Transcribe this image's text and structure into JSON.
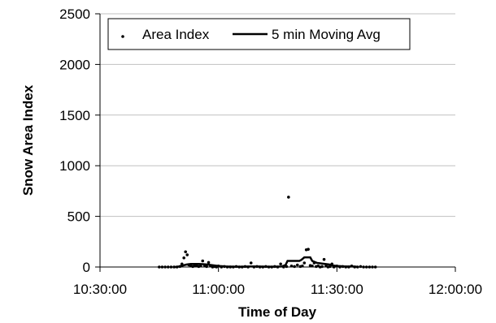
{
  "chart_data": {
    "type": "scatter",
    "xlabel": "Time of Day",
    "ylabel": "Snow Area Index",
    "x_ticks": [
      "10:30:00",
      "11:00:00",
      "11:30:00",
      "12:00:00"
    ],
    "y_ticks": [
      "0",
      "500",
      "1000",
      "1500",
      "2000",
      "2500"
    ],
    "xlim": [
      "10:30:00",
      "12:00:00"
    ],
    "ylim": [
      0,
      2500
    ],
    "grid": "horizontal",
    "legend": {
      "placement": "top-left",
      "entries": [
        "Area Index",
        "5 min Moving Avg"
      ]
    },
    "series": [
      {
        "name": "Area Index",
        "style": "points",
        "color": "#000000",
        "points": [
          [
            "10:45:00",
            0
          ],
          [
            "10:45:45",
            0
          ],
          [
            "10:46:30",
            0
          ],
          [
            "10:47:15",
            0
          ],
          [
            "10:48:00",
            0
          ],
          [
            "10:48:45",
            0
          ],
          [
            "10:49:30",
            0
          ],
          [
            "10:50:15",
            5
          ],
          [
            "10:50:45",
            30
          ],
          [
            "10:51:15",
            90
          ],
          [
            "10:51:40",
            150
          ],
          [
            "10:52:05",
            120
          ],
          [
            "10:52:30",
            20
          ],
          [
            "10:53:00",
            10
          ],
          [
            "10:53:30",
            5
          ],
          [
            "10:54:00",
            15
          ],
          [
            "10:54:30",
            10
          ],
          [
            "10:55:00",
            5
          ],
          [
            "10:55:30",
            10
          ],
          [
            "10:56:00",
            60
          ],
          [
            "10:56:30",
            15
          ],
          [
            "10:57:00",
            5
          ],
          [
            "10:57:30",
            45
          ],
          [
            "10:58:00",
            10
          ],
          [
            "10:58:30",
            0
          ],
          [
            "10:59:00",
            5
          ],
          [
            "10:59:30",
            0
          ],
          [
            "11:00:00",
            10
          ],
          [
            "11:00:45",
            0
          ],
          [
            "11:01:30",
            5
          ],
          [
            "11:02:15",
            0
          ],
          [
            "11:03:00",
            0
          ],
          [
            "11:03:45",
            0
          ],
          [
            "11:04:30",
            5
          ],
          [
            "11:05:15",
            0
          ],
          [
            "11:06:00",
            0
          ],
          [
            "11:06:45",
            5
          ],
          [
            "11:07:30",
            0
          ],
          [
            "11:08:15",
            40
          ],
          [
            "11:09:00",
            0
          ],
          [
            "11:09:45",
            5
          ],
          [
            "11:10:30",
            0
          ],
          [
            "11:11:15",
            0
          ],
          [
            "11:12:00",
            5
          ],
          [
            "11:12:45",
            0
          ],
          [
            "11:13:30",
            0
          ],
          [
            "11:14:15",
            5
          ],
          [
            "11:15:00",
            0
          ],
          [
            "11:15:45",
            30
          ],
          [
            "11:16:30",
            0
          ],
          [
            "11:17:15",
            5
          ],
          [
            "11:17:45",
            690
          ],
          [
            "11:18:30",
            10
          ],
          [
            "11:19:15",
            5
          ],
          [
            "11:20:00",
            20
          ],
          [
            "11:20:45",
            5
          ],
          [
            "11:21:15",
            10
          ],
          [
            "11:21:45",
            40
          ],
          [
            "11:22:15",
            170
          ],
          [
            "11:22:45",
            175
          ],
          [
            "11:23:15",
            15
          ],
          [
            "11:23:45",
            10
          ],
          [
            "11:24:15",
            40
          ],
          [
            "11:24:45",
            5
          ],
          [
            "11:25:15",
            10
          ],
          [
            "11:25:45",
            0
          ],
          [
            "11:26:15",
            5
          ],
          [
            "11:26:45",
            75
          ],
          [
            "11:27:15",
            10
          ],
          [
            "11:27:45",
            0
          ],
          [
            "11:28:15",
            5
          ],
          [
            "11:28:45",
            30
          ],
          [
            "11:29:15",
            0
          ],
          [
            "11:30:00",
            10
          ],
          [
            "11:30:45",
            0
          ],
          [
            "11:31:30",
            5
          ],
          [
            "11:32:15",
            0
          ],
          [
            "11:33:00",
            0
          ],
          [
            "11:33:45",
            10
          ],
          [
            "11:34:30",
            0
          ],
          [
            "11:35:15",
            0
          ],
          [
            "11:36:00",
            5
          ],
          [
            "11:36:45",
            0
          ],
          [
            "11:37:30",
            0
          ],
          [
            "11:38:15",
            0
          ],
          [
            "11:39:00",
            0
          ],
          [
            "11:39:45",
            0
          ]
        ]
      },
      {
        "name": "5 min Moving Avg",
        "style": "line",
        "color": "#000000",
        "points": [
          [
            "10:49:00",
            0
          ],
          [
            "10:50:00",
            5
          ],
          [
            "10:51:00",
            15
          ],
          [
            "10:52:00",
            25
          ],
          [
            "10:53:00",
            30
          ],
          [
            "10:54:00",
            30
          ],
          [
            "10:55:00",
            30
          ],
          [
            "10:56:00",
            28
          ],
          [
            "10:57:00",
            25
          ],
          [
            "10:58:00",
            20
          ],
          [
            "10:59:00",
            15
          ],
          [
            "11:00:00",
            10
          ],
          [
            "11:02:00",
            5
          ],
          [
            "11:04:00",
            3
          ],
          [
            "11:06:00",
            3
          ],
          [
            "11:08:00",
            5
          ],
          [
            "11:10:00",
            5
          ],
          [
            "11:12:00",
            3
          ],
          [
            "11:14:00",
            3
          ],
          [
            "11:16:00",
            5
          ],
          [
            "11:17:00",
            20
          ],
          [
            "11:17:30",
            60
          ],
          [
            "11:20:30",
            60
          ],
          [
            "11:21:00",
            70
          ],
          [
            "11:21:45",
            95
          ],
          [
            "11:23:15",
            95
          ],
          [
            "11:23:45",
            60
          ],
          [
            "11:25:00",
            40
          ],
          [
            "11:26:00",
            35
          ],
          [
            "11:27:00",
            30
          ],
          [
            "11:28:00",
            25
          ],
          [
            "11:29:00",
            15
          ],
          [
            "11:30:00",
            10
          ],
          [
            "11:31:00",
            8
          ],
          [
            "11:32:00",
            5
          ],
          [
            "11:33:00",
            5
          ],
          [
            "11:34:00",
            5
          ],
          [
            "11:35:00",
            3
          ]
        ]
      }
    ]
  }
}
